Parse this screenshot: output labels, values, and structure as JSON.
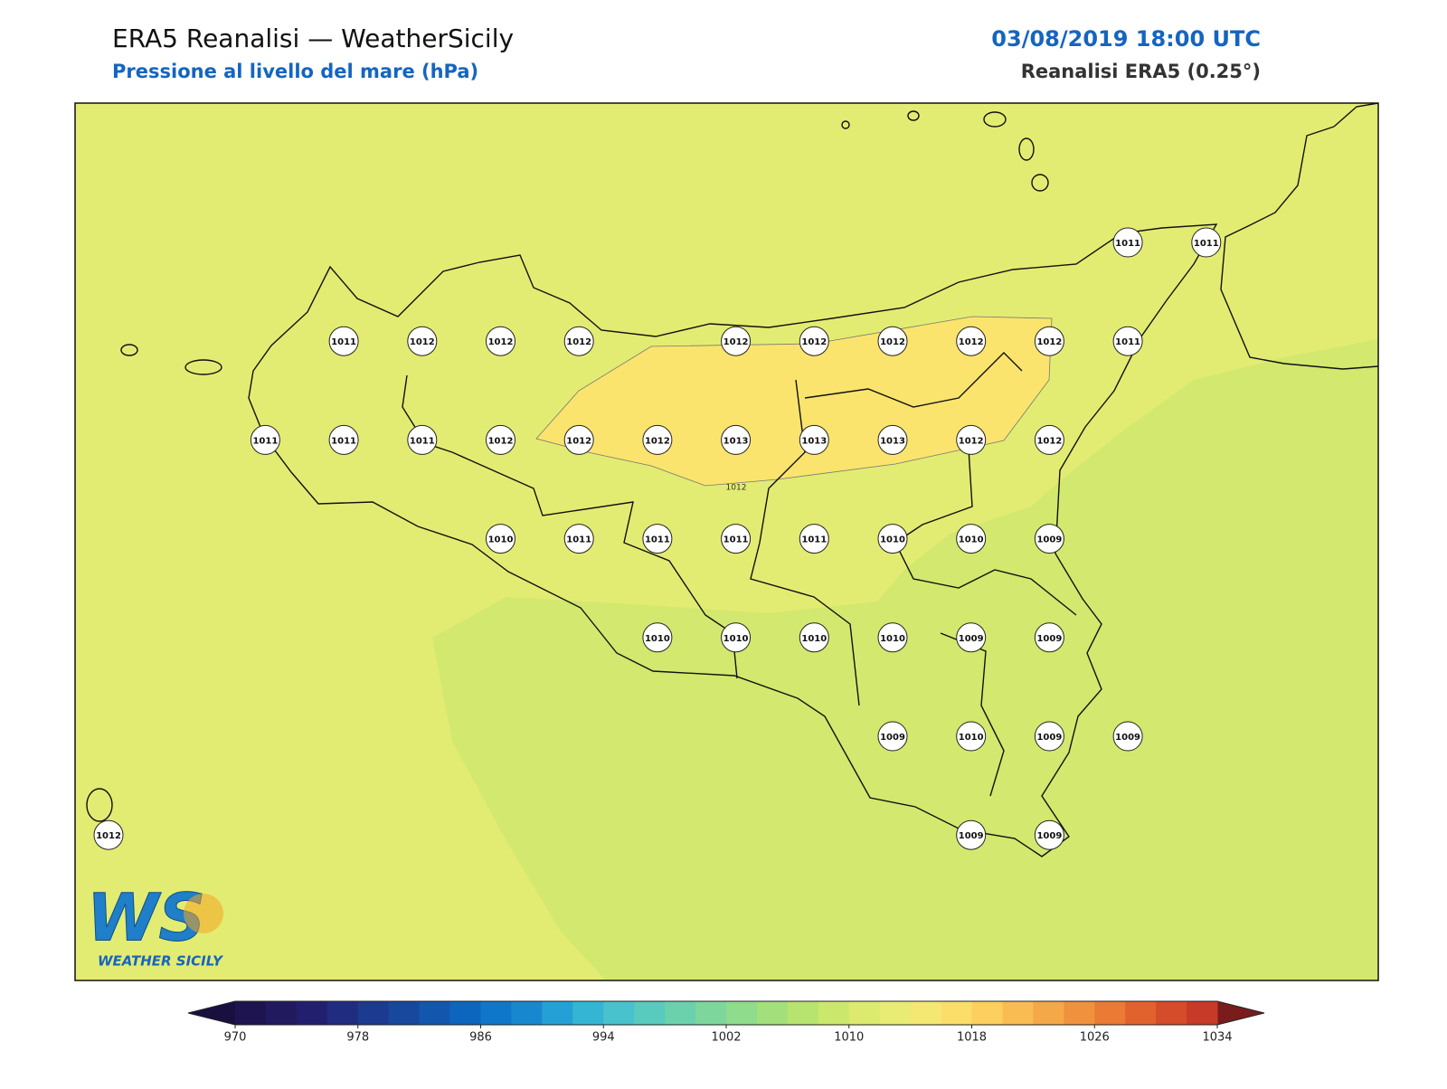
{
  "header": {
    "title": "ERA5 Reanalisi — WeatherSicily",
    "subtitle": "Pressione al livello del mare (hPa)",
    "datetime": "03/08/2019 18:00 UTC",
    "source": "Reanalisi ERA5 (0.25°)"
  },
  "map": {
    "grid_values": [
      [
        null,
        null,
        null,
        null,
        null,
        null,
        null,
        null,
        null,
        null,
        null,
        null,
        null,
        1011,
        1011
      ],
      [
        null,
        null,
        null,
        1011,
        1012,
        1012,
        1012,
        null,
        1012,
        1012,
        1012,
        1012,
        1012,
        1011,
        null
      ],
      [
        null,
        null,
        1011,
        1011,
        1011,
        1012,
        1012,
        1012,
        1013,
        1013,
        1013,
        1012,
        1012,
        null,
        null
      ],
      [
        null,
        null,
        null,
        null,
        null,
        1010,
        1011,
        1011,
        1011,
        1011,
        1010,
        1010,
        1009,
        null,
        null
      ],
      [
        null,
        null,
        null,
        null,
        null,
        null,
        null,
        1010,
        1010,
        1010,
        1010,
        1009,
        1009,
        null,
        null
      ],
      [
        null,
        null,
        null,
        null,
        null,
        null,
        null,
        null,
        null,
        null,
        1009,
        1010,
        1009,
        1009,
        null
      ],
      [
        1012,
        null,
        null,
        null,
        null,
        null,
        null,
        null,
        null,
        null,
        null,
        1009,
        1009,
        null,
        null
      ]
    ],
    "contour_label": "1012"
  },
  "logo": {
    "mark": "WS",
    "name": "WEATHER SICILY"
  },
  "colorbar": {
    "range": [
      970,
      1034
    ],
    "ticks": [
      970,
      978,
      986,
      994,
      1002,
      1010,
      1018,
      1026,
      1034
    ],
    "colors": [
      "#1e1550",
      "#221a5e",
      "#22206e",
      "#1f2c80",
      "#1c3a8f",
      "#17489e",
      "#1257ad",
      "#0d66bd",
      "#0f77c9",
      "#1788d0",
      "#24a0d6",
      "#35b5d4",
      "#48c2cc",
      "#58cbbe",
      "#6bd1ad",
      "#7dd79c",
      "#8fdc8c",
      "#a3e07c",
      "#b7e46e",
      "#cbe86c",
      "#dcea6e",
      "#e9ec74",
      "#f4e873",
      "#fbdd6a",
      "#fccf5e",
      "#f9bc52",
      "#f5a847",
      "#f0923d",
      "#ea7a34",
      "#e1622c",
      "#d44c29",
      "#c63a27"
    ],
    "under_color": "#1a1040",
    "over_color": "#7a1c1c"
  }
}
